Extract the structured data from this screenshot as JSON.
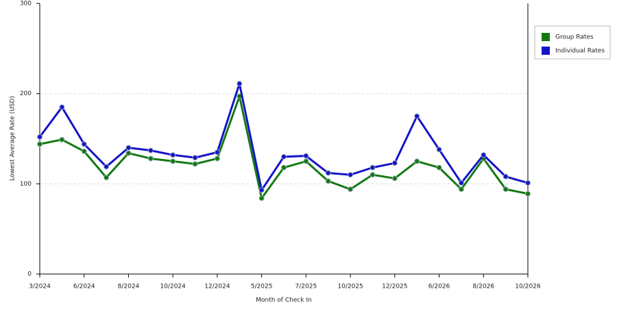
{
  "chart_data": {
    "type": "line",
    "x_label": "Month of Check In",
    "y_label": "Lowest Average Rate (USD)",
    "categories": [
      "3/2024",
      null,
      "6/2024",
      null,
      "8/2024",
      null,
      "10/2024",
      null,
      "12/2024",
      null,
      "5/2025",
      null,
      "7/2025",
      null,
      "10/2025",
      null,
      "12/2025",
      null,
      "6/2026",
      null,
      "8/2026",
      null,
      "10/2026"
    ],
    "series": [
      {
        "name": "Group Rates",
        "color": "#137a13",
        "values": [
          144,
          149,
          136,
          107,
          134,
          128,
          125,
          122,
          128,
          197,
          84,
          118,
          125,
          103,
          94,
          110,
          106,
          125,
          118,
          94,
          128,
          94,
          89
        ]
      },
      {
        "name": "Individual Rates",
        "color": "#1414c8",
        "values": [
          152,
          185,
          144,
          119,
          140,
          137,
          132,
          129,
          135,
          211,
          93,
          130,
          131,
          112,
          110,
          118,
          123,
          175,
          138,
          101,
          132,
          108,
          101
        ]
      }
    ],
    "ylim": [
      0,
      300
    ],
    "yticks": [
      0,
      100,
      200,
      300
    ],
    "grid": true,
    "legend": "right"
  }
}
